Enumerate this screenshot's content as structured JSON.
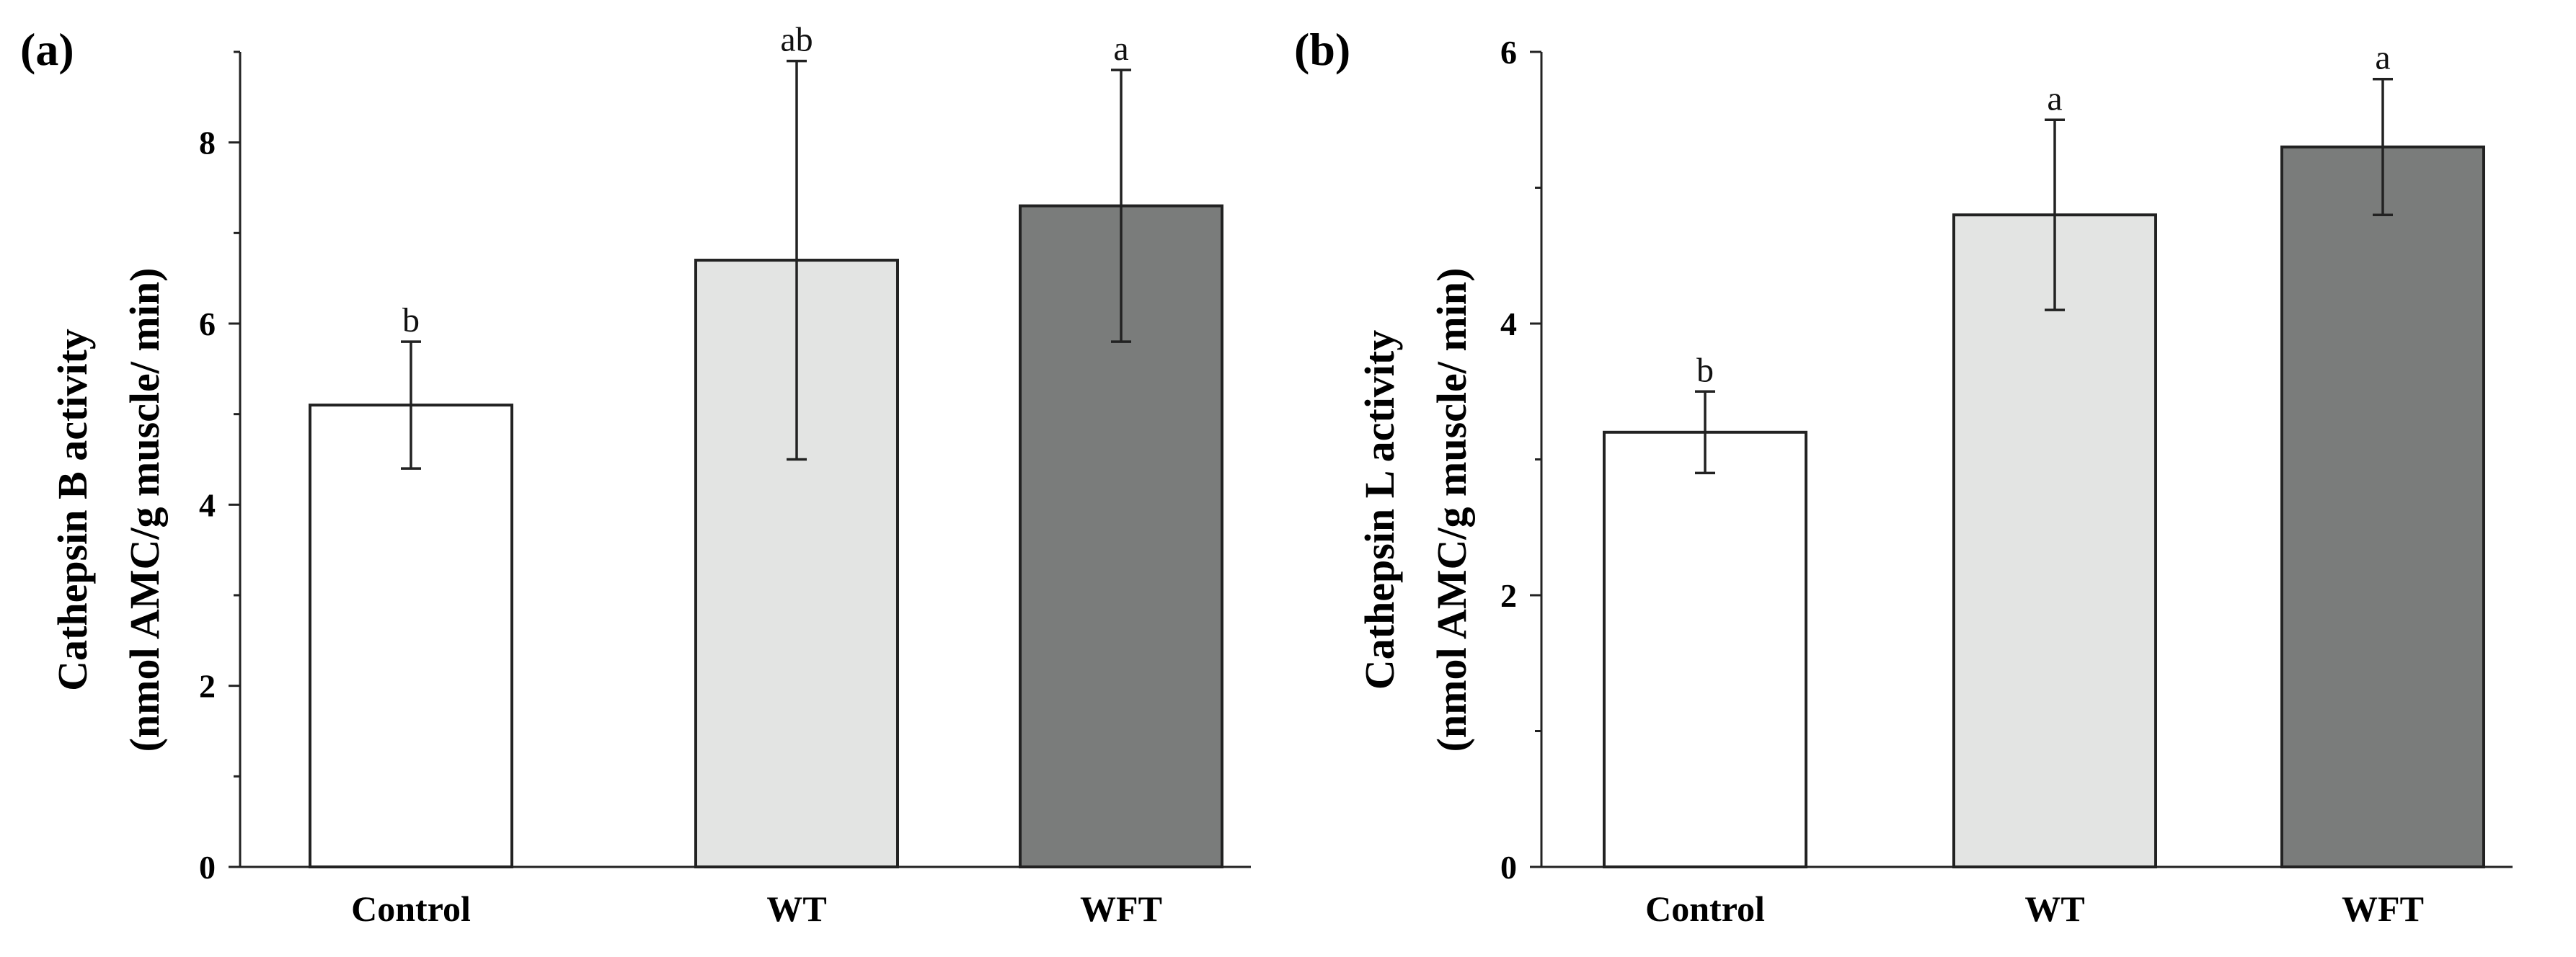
{
  "chart_data": [
    {
      "panel_label": "(a)",
      "type": "bar",
      "categories": [
        "Control",
        "WT",
        "WFT"
      ],
      "values": [
        5.1,
        6.7,
        7.3
      ],
      "error_low": [
        4.4,
        4.5,
        5.8
      ],
      "error_high": [
        5.8,
        8.9,
        8.8
      ],
      "significance": [
        "b",
        "ab",
        "a"
      ],
      "colors": [
        "#ffffff",
        "#e3e4e3",
        "#7a7c7b"
      ],
      "ylabel_line1": "Cathepsin B activity",
      "ylabel_line2": "(nmol AMC/g muscle/ min)",
      "ylim": [
        0,
        9
      ],
      "yticks": [
        0,
        2,
        4,
        6,
        8
      ],
      "minor_tick_step": 1
    },
    {
      "panel_label": "(b)",
      "type": "bar",
      "categories": [
        "Control",
        "WT",
        "WFT"
      ],
      "values": [
        3.2,
        4.8,
        5.3
      ],
      "error_low": [
        2.9,
        4.1,
        4.8
      ],
      "error_high": [
        3.5,
        5.5,
        5.8
      ],
      "significance": [
        "b",
        "a",
        "a"
      ],
      "colors": [
        "#ffffff",
        "#e3e4e3",
        "#7a7c7b"
      ],
      "ylabel_line1": "Cathepsin L activity",
      "ylabel_line2": "(nmol AMC/g muscle/ min)",
      "ylim": [
        0,
        6
      ],
      "yticks": [
        0,
        2,
        4,
        6
      ],
      "minor_tick_step": 1
    }
  ]
}
